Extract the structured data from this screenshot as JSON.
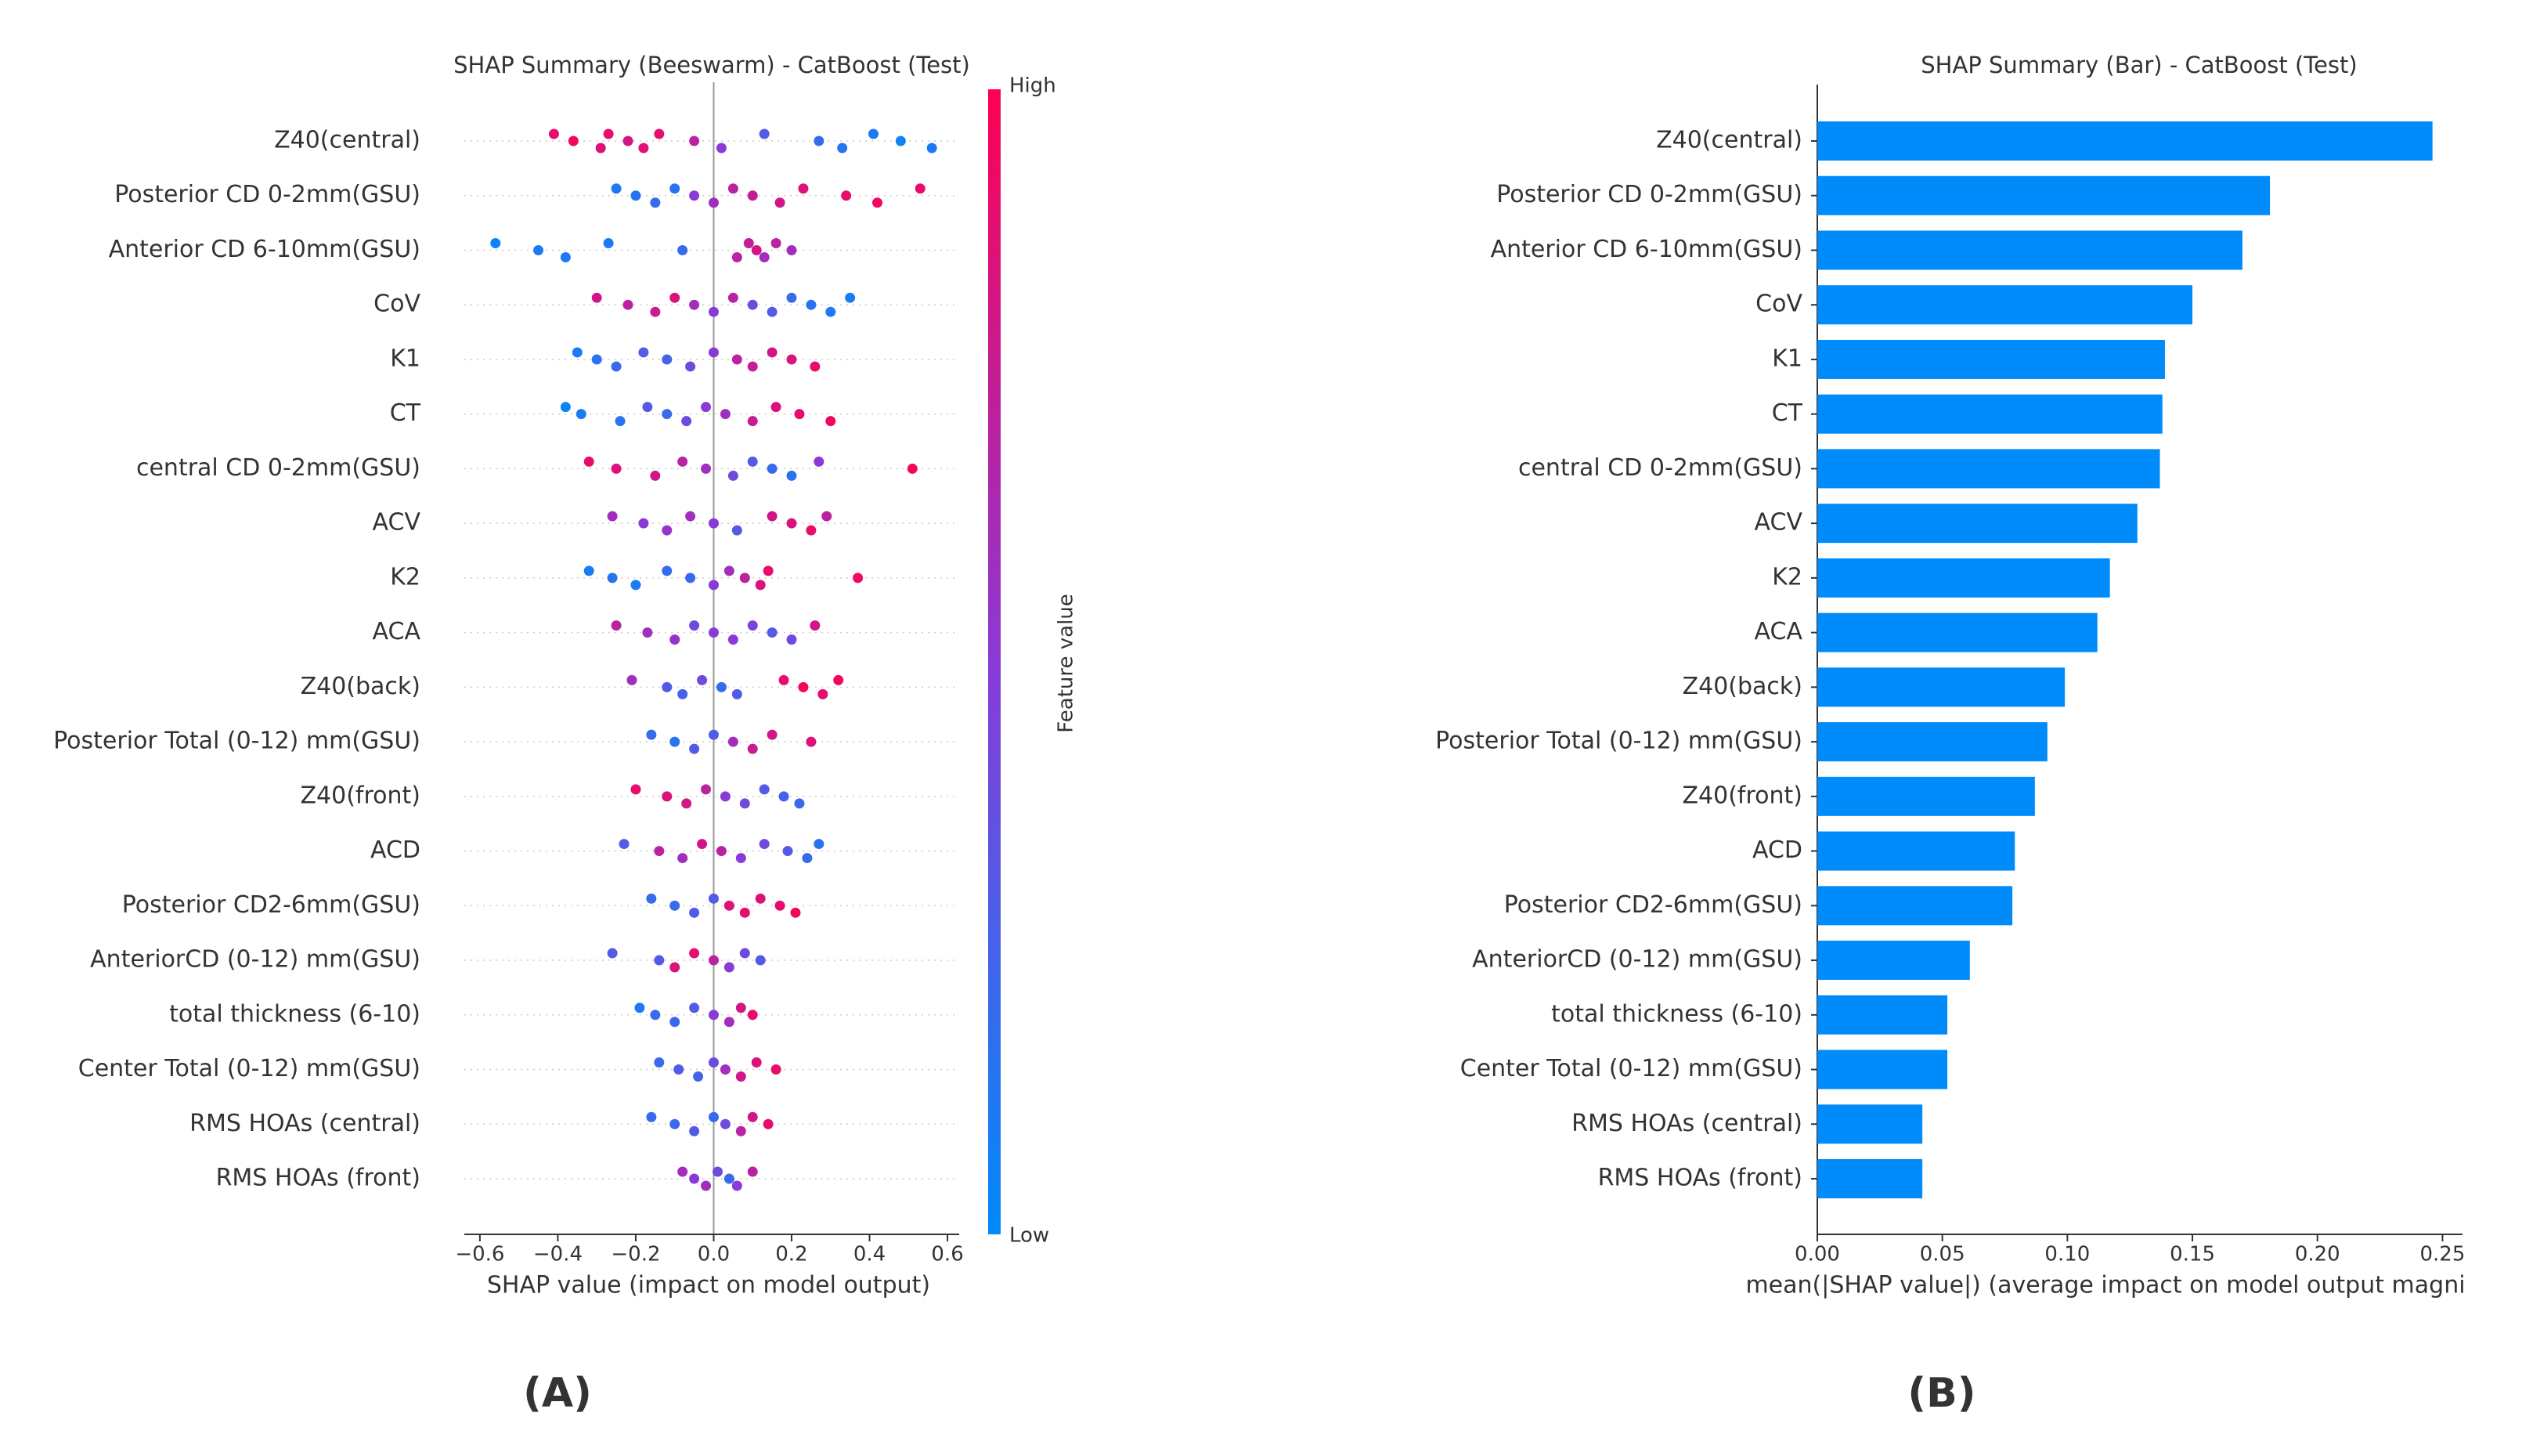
{
  "chart_data": [
    {
      "type": "beeswarm",
      "title": "SHAP Summary (Beeswarm) - CatBoost (Test)",
      "xlabel": "SHAP value (impact on model output)",
      "panel_label": "(A)",
      "xlim": [
        -0.64,
        0.63
      ],
      "xticks": [
        {
          "value": -0.6,
          "label": "−0.6"
        },
        {
          "value": -0.4,
          "label": "−0.4"
        },
        {
          "value": -0.2,
          "label": "−0.2"
        },
        {
          "value": 0.0,
          "label": "0.0"
        },
        0.2,
        0.4,
        0.6
      ],
      "categories": [
        "Z40(central)",
        "Posterior CD 0-2mm(GSU)",
        "Anterior CD 6-10mm(GSU)",
        "CoV",
        "K1",
        "CT",
        "central CD 0-2mm(GSU)",
        "ACV",
        "K2",
        "ACA",
        "Z40(back)",
        "Posterior Total (0-12) mm(GSU)",
        "Z40(front)",
        "ACD",
        "Posterior CD2-6mm(GSU)",
        "AnteriorCD (0-12) mm(GSU)",
        "total thickness (6-10)",
        "Center Total (0-12) mm(GSU)",
        "RMS HOAs (central)",
        "RMS HOAs (front)"
      ],
      "points": [
        {
          "shap": [
            -0.41,
            -0.36,
            -0.29,
            -0.27,
            -0.22,
            -0.18,
            -0.14,
            -0.05,
            0.02,
            0.13,
            0.27,
            0.33,
            0.41,
            0.48,
            0.56
          ],
          "feature_value": [
            0.9,
            0.95,
            0.85,
            0.9,
            0.8,
            0.85,
            0.9,
            0.7,
            0.5,
            0.3,
            0.2,
            0.15,
            0.1,
            0.05,
            0.1
          ]
        },
        {
          "shap": [
            -0.25,
            -0.2,
            -0.15,
            -0.1,
            -0.05,
            0.0,
            0.05,
            0.1,
            0.17,
            0.23,
            0.34,
            0.42,
            0.53
          ],
          "feature_value": [
            0.1,
            0.15,
            0.2,
            0.15,
            0.5,
            0.6,
            0.7,
            0.75,
            0.8,
            0.85,
            0.9,
            0.95,
            0.9
          ]
        },
        {
          "shap": [
            -0.56,
            -0.45,
            -0.38,
            -0.27,
            -0.08,
            0.06,
            0.09,
            0.11,
            0.13,
            0.16,
            0.2
          ],
          "feature_value": [
            0.05,
            0.1,
            0.1,
            0.1,
            0.2,
            0.7,
            0.75,
            0.8,
            0.6,
            0.7,
            0.6
          ]
        },
        {
          "shap": [
            -0.3,
            -0.22,
            -0.15,
            -0.1,
            -0.05,
            0.0,
            0.05,
            0.1,
            0.15,
            0.2,
            0.25,
            0.3,
            0.35
          ],
          "feature_value": [
            0.8,
            0.7,
            0.75,
            0.85,
            0.6,
            0.5,
            0.7,
            0.4,
            0.3,
            0.2,
            0.15,
            0.1,
            0.1
          ]
        },
        {
          "shap": [
            -0.35,
            -0.3,
            -0.25,
            -0.18,
            -0.12,
            -0.06,
            0.0,
            0.06,
            0.1,
            0.15,
            0.2,
            0.26
          ],
          "feature_value": [
            0.1,
            0.15,
            0.2,
            0.3,
            0.25,
            0.4,
            0.5,
            0.7,
            0.75,
            0.8,
            0.85,
            0.9
          ]
        },
        {
          "shap": [
            -0.38,
            -0.34,
            -0.24,
            -0.17,
            -0.12,
            -0.07,
            -0.02,
            0.03,
            0.1,
            0.16,
            0.22,
            0.3
          ],
          "feature_value": [
            0.05,
            0.1,
            0.15,
            0.3,
            0.2,
            0.4,
            0.5,
            0.6,
            0.75,
            0.85,
            0.9,
            0.95
          ]
        },
        {
          "shap": [
            -0.32,
            -0.25,
            -0.15,
            -0.08,
            -0.02,
            0.05,
            0.1,
            0.15,
            0.2,
            0.27,
            0.51
          ],
          "feature_value": [
            0.9,
            0.85,
            0.8,
            0.7,
            0.6,
            0.4,
            0.3,
            0.2,
            0.15,
            0.5,
            0.95
          ]
        },
        {
          "shap": [
            -0.26,
            -0.18,
            -0.12,
            -0.06,
            0.0,
            0.06,
            0.15,
            0.2,
            0.25,
            0.29
          ],
          "feature_value": [
            0.6,
            0.5,
            0.55,
            0.6,
            0.5,
            0.3,
            0.8,
            0.85,
            0.9,
            0.7
          ]
        },
        {
          "shap": [
            -0.32,
            -0.26,
            -0.2,
            -0.12,
            -0.06,
            0.0,
            0.04,
            0.08,
            0.12,
            0.14,
            0.37
          ],
          "feature_value": [
            0.1,
            0.15,
            0.1,
            0.2,
            0.2,
            0.5,
            0.6,
            0.7,
            0.85,
            0.9,
            0.95
          ]
        },
        {
          "shap": [
            -0.25,
            -0.17,
            -0.1,
            -0.05,
            0.0,
            0.05,
            0.1,
            0.15,
            0.2,
            0.26
          ],
          "feature_value": [
            0.7,
            0.6,
            0.55,
            0.4,
            0.5,
            0.5,
            0.45,
            0.3,
            0.4,
            0.8
          ]
        },
        {
          "shap": [
            -0.21,
            -0.12,
            -0.08,
            -0.03,
            0.02,
            0.06,
            0.18,
            0.23,
            0.28,
            0.32
          ],
          "feature_value": [
            0.6,
            0.3,
            0.25,
            0.4,
            0.2,
            0.3,
            0.9,
            0.95,
            0.9,
            0.95
          ]
        },
        {
          "shap": [
            -0.16,
            -0.1,
            -0.05,
            0.0,
            0.05,
            0.1,
            0.15,
            0.25
          ],
          "feature_value": [
            0.2,
            0.15,
            0.3,
            0.3,
            0.6,
            0.75,
            0.8,
            0.85
          ]
        },
        {
          "shap": [
            -0.2,
            -0.12,
            -0.07,
            -0.02,
            0.03,
            0.08,
            0.13,
            0.18,
            0.22
          ],
          "feature_value": [
            0.9,
            0.85,
            0.8,
            0.7,
            0.5,
            0.4,
            0.3,
            0.25,
            0.2
          ]
        },
        {
          "shap": [
            -0.23,
            -0.14,
            -0.08,
            -0.03,
            0.02,
            0.07,
            0.13,
            0.19,
            0.24,
            0.27
          ],
          "feature_value": [
            0.3,
            0.7,
            0.6,
            0.8,
            0.7,
            0.5,
            0.4,
            0.3,
            0.2,
            0.15
          ]
        },
        {
          "shap": [
            -0.16,
            -0.1,
            -0.05,
            0.0,
            0.04,
            0.08,
            0.12,
            0.17,
            0.21
          ],
          "feature_value": [
            0.2,
            0.2,
            0.3,
            0.3,
            0.85,
            0.9,
            0.85,
            0.9,
            0.95
          ]
        },
        {
          "shap": [
            -0.26,
            -0.14,
            -0.1,
            -0.05,
            0.0,
            0.04,
            0.08,
            0.12
          ],
          "feature_value": [
            0.3,
            0.3,
            0.85,
            0.9,
            0.7,
            0.5,
            0.4,
            0.3
          ]
        },
        {
          "shap": [
            -0.19,
            -0.15,
            -0.1,
            -0.05,
            0.0,
            0.04,
            0.07,
            0.1
          ],
          "feature_value": [
            0.1,
            0.2,
            0.2,
            0.3,
            0.5,
            0.6,
            0.8,
            0.9
          ]
        },
        {
          "shap": [
            -0.14,
            -0.09,
            -0.04,
            0.0,
            0.03,
            0.07,
            0.11,
            0.16
          ],
          "feature_value": [
            0.2,
            0.3,
            0.25,
            0.4,
            0.6,
            0.8,
            0.85,
            0.9
          ]
        },
        {
          "shap": [
            -0.16,
            -0.1,
            -0.05,
            0.0,
            0.03,
            0.07,
            0.1,
            0.14
          ],
          "feature_value": [
            0.2,
            0.2,
            0.3,
            0.2,
            0.4,
            0.7,
            0.8,
            0.9
          ]
        },
        {
          "shap": [
            -0.08,
            -0.05,
            -0.02,
            0.01,
            0.04,
            0.06,
            0.1
          ],
          "feature_value": [
            0.6,
            0.5,
            0.6,
            0.4,
            0.2,
            0.5,
            0.7
          ]
        }
      ],
      "colorbar": {
        "label": "Feature value",
        "high": "High",
        "low": "Low",
        "colors": [
          "#008bfb",
          "#8a3ad6",
          "#ff0052"
        ]
      }
    },
    {
      "type": "barh",
      "title": "SHAP Summary (Bar) - CatBoost (Test)",
      "xlabel": "mean(|SHAP value|) (average impact on model output magni",
      "panel_label": "(B)",
      "color": "#008bfb",
      "xlim": [
        0,
        0.258
      ],
      "xticks": [
        {
          "value": 0,
          "label": "0.00"
        },
        0.05,
        {
          "value": 0.1,
          "label": "0.10"
        },
        0.15,
        {
          "value": 0.2,
          "label": "0.20"
        },
        0.25
      ],
      "categories": [
        "Z40(central)",
        "Posterior CD 0-2mm(GSU)",
        "Anterior CD 6-10mm(GSU)",
        "CoV",
        "K1",
        "CT",
        "central CD 0-2mm(GSU)",
        "ACV",
        "K2",
        "ACA",
        "Z40(back)",
        "Posterior Total (0-12) mm(GSU)",
        "Z40(front)",
        "ACD",
        "Posterior CD2-6mm(GSU)",
        "AnteriorCD (0-12) mm(GSU)",
        "total thickness (6-10)",
        "Center Total (0-12) mm(GSU)",
        "RMS HOAs (central)",
        "RMS HOAs (front)"
      ],
      "values": [
        0.246,
        0.181,
        0.17,
        0.15,
        0.139,
        0.138,
        0.137,
        0.128,
        0.117,
        0.112,
        0.099,
        0.092,
        0.087,
        0.079,
        0.078,
        0.061,
        0.052,
        0.052,
        0.042,
        0.042
      ]
    }
  ]
}
